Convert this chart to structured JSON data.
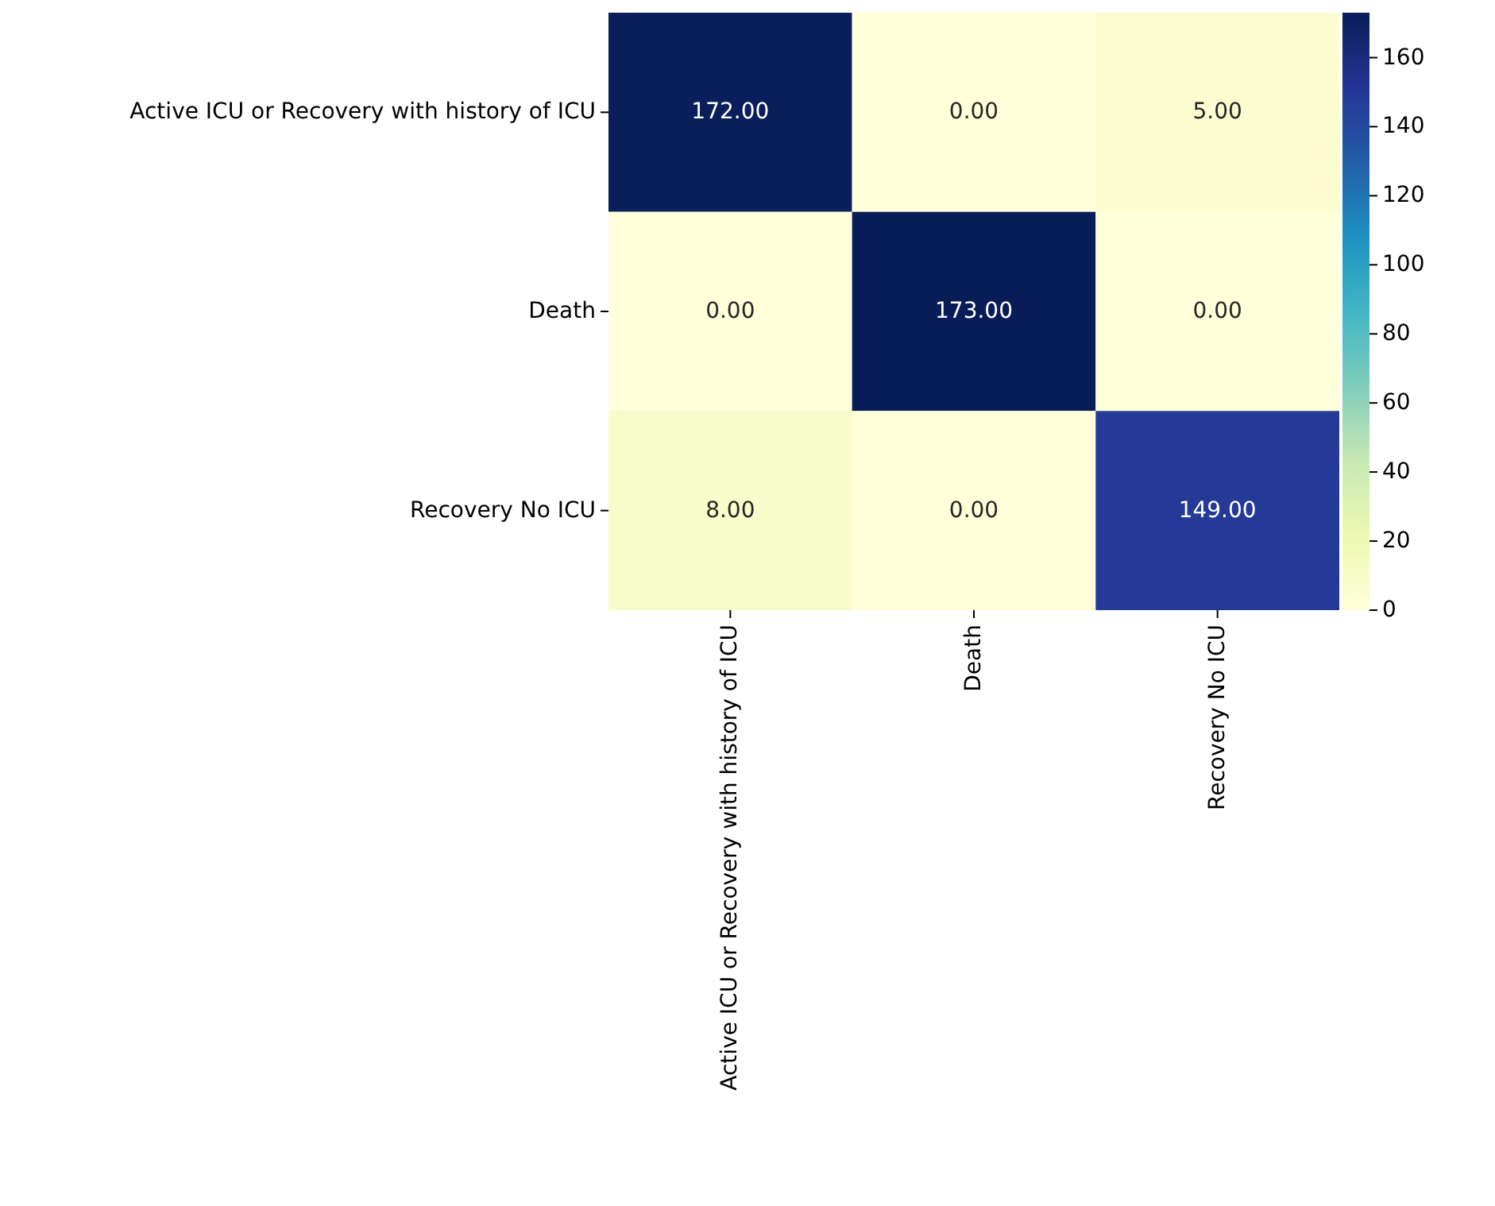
{
  "chart_data": {
    "type": "heatmap",
    "categories": [
      "Active ICU or Recovery with history of ICU",
      "Death",
      "Recovery No ICU"
    ],
    "y_categories": [
      "Active ICU or Recovery with history of ICU",
      "Death",
      "Recovery No ICU"
    ],
    "cells": [
      [
        172,
        0,
        5
      ],
      [
        0,
        173,
        0
      ],
      [
        8,
        0,
        149
      ]
    ],
    "cell_labels": [
      [
        "172.00",
        "0.00",
        "5.00"
      ],
      [
        "0.00",
        "173.00",
        "0.00"
      ],
      [
        "8.00",
        "0.00",
        "149.00"
      ]
    ],
    "clim": [
      0,
      173
    ],
    "cticks": [
      0,
      20,
      40,
      60,
      80,
      100,
      120,
      140,
      160
    ]
  }
}
